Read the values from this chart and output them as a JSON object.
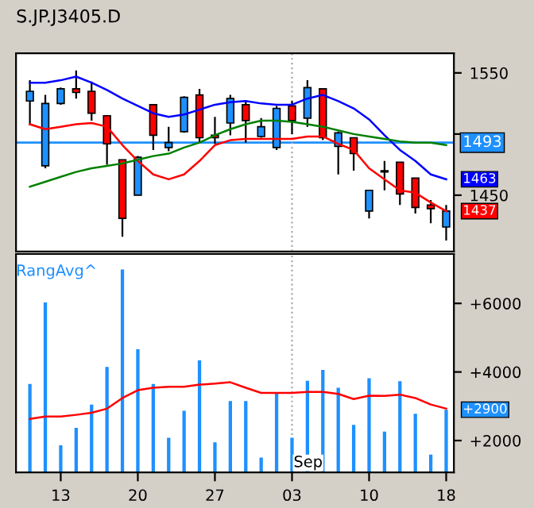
{
  "chart_data": [
    {
      "type": "candlestick",
      "title": "S.JP.J3405.D",
      "tick_labels": "y",
      "categories": [
        null,
        null,
        "13",
        null,
        null,
        null,
        null,
        "20",
        null,
        null,
        null,
        null,
        "27",
        null,
        null,
        null,
        null,
        "03",
        null,
        null,
        null,
        null,
        "10",
        null,
        null,
        null,
        null,
        "18"
      ],
      "ohlc": [
        [
          1527,
          1544,
          1507,
          1535
        ],
        [
          1474,
          1532,
          1472,
          1525
        ],
        [
          1525,
          1538,
          1524,
          1537
        ],
        [
          1537,
          1552,
          1529,
          1534
        ],
        [
          1535,
          1543,
          1511,
          1517
        ],
        [
          1515,
          1515,
          1475,
          1492
        ],
        [
          1479,
          1479,
          1416,
          1431
        ],
        [
          1450,
          1482,
          1450,
          1481
        ],
        [
          1524,
          1524,
          1487,
          1499
        ],
        [
          1489,
          1506,
          1486,
          1493
        ],
        [
          1502,
          1531,
          1501,
          1530
        ],
        [
          1532,
          1537,
          1493,
          1497
        ],
        [
          1499,
          1514,
          1492,
          1497
        ],
        [
          1509,
          1532,
          1499,
          1529
        ],
        [
          1524,
          1527,
          1493,
          1511
        ],
        [
          1498,
          1513,
          1497,
          1506
        ],
        [
          1489,
          1523,
          1487,
          1521
        ],
        [
          1523,
          1527,
          1500,
          1511
        ],
        [
          1513,
          1544,
          1506,
          1538
        ],
        [
          1537,
          1537,
          1495,
          1497
        ],
        [
          1490,
          1502,
          1467,
          1501
        ],
        [
          1497,
          1497,
          1470,
          1484
        ],
        [
          1437,
          1454,
          1431,
          1454
        ],
        [
          1469,
          1478,
          1454,
          1470
        ],
        [
          1477,
          1477,
          1442,
          1451
        ],
        [
          1464,
          1464,
          1435,
          1440
        ],
        [
          1442,
          1446,
          1427,
          1439
        ],
        [
          1424,
          1442,
          1413,
          1437
        ]
      ],
      "colors": [
        "#1e90ff",
        "#1e90ff",
        "#1e90ff",
        "#ff0000",
        "#ff0000",
        "#ff0000",
        "#ff0000",
        "#1e90ff",
        "#ff0000",
        "#1e90ff",
        "#1e90ff",
        "#ff0000",
        "#ff0000",
        "#1e90ff",
        "#ff0000",
        "#1e90ff",
        "#1e90ff",
        "#ff0000",
        "#1e90ff",
        "#ff0000",
        "#1e90ff",
        "#ff0000",
        "#1e90ff",
        "#1e90ff",
        "#ff0000",
        "#ff0000",
        "#ff0000",
        "#1e90ff"
      ],
      "series": [
        {
          "type": "line",
          "color": "#0000ff",
          "values": [
            1542,
            1542,
            1544,
            1547,
            1542,
            1536,
            1529,
            1523,
            1517,
            1514,
            1516,
            1520,
            1524,
            1526,
            1527,
            1525,
            1524,
            1524,
            1529,
            1532,
            1527,
            1521,
            1512,
            1499,
            1487,
            1478,
            1467,
            1463
          ]
        },
        {
          "type": "line",
          "color": "#ff0000",
          "values": [
            1508,
            1504,
            1506,
            1508,
            1509,
            1506,
            1491,
            1478,
            1467,
            1463,
            1467,
            1478,
            1491,
            1495,
            1496,
            1496,
            1496,
            1496,
            1498,
            1498,
            1492,
            1487,
            1472,
            1463,
            1454,
            1452,
            1444,
            1437
          ]
        },
        {
          "type": "line",
          "color": "#008000",
          "values": [
            1457,
            1461,
            1465,
            1469,
            1472,
            1474,
            1476,
            1479,
            1482,
            1484,
            1489,
            1493,
            1499,
            1504,
            1508,
            1511,
            1511,
            1510,
            1508,
            1506,
            1503,
            1500,
            1498,
            1496,
            1494,
            1493,
            1493,
            1491
          ]
        }
      ],
      "ylim": [
        1404,
        1566
      ],
      "yticks": [
        1450,
        {
          "value": 1500,
          "label": null
        },
        1550
      ],
      "ref_lines": [
        {
          "axis": "y",
          "value": 1493,
          "label": "1493",
          "color": "#1e90ff"
        },
        {
          "axis": "x",
          "value": "03",
          "color": "#aaaaaa",
          "line_style": "dotted"
        }
      ],
      "annotations": [
        {
          "text": "1463",
          "x": "18",
          "y": 1463
        },
        {
          "text": "1437",
          "x": "18",
          "y": 1437
        }
      ]
    },
    {
      "type": "bar",
      "title": "RangAvg^",
      "categories": [
        null,
        null,
        "13",
        null,
        null,
        null,
        null,
        "20",
        null,
        null,
        null,
        null,
        "27",
        null,
        null,
        null,
        null,
        "03",
        null,
        null,
        null,
        null,
        "10",
        null,
        null,
        null,
        null,
        "18"
      ],
      "series": [
        {
          "type": "bar",
          "color": "#1e90ff",
          "values": [
            3650,
            6030,
            1860,
            2370,
            3050,
            4150,
            6990,
            4660,
            3650,
            2080,
            2870,
            4340,
            1950,
            3150,
            3150,
            1500,
            3370,
            2080,
            3740,
            4060,
            3540,
            2460,
            3820,
            2260,
            3730,
            2780,
            1590,
            2900
          ]
        },
        {
          "type": "line",
          "color": "#ff0000",
          "values": [
            2630,
            2700,
            2700,
            2750,
            2810,
            2930,
            3240,
            3470,
            3540,
            3570,
            3570,
            3630,
            3660,
            3700,
            3540,
            3390,
            3390,
            3390,
            3420,
            3420,
            3360,
            3210,
            3310,
            3300,
            3340,
            3240,
            3050,
            2930
          ]
        }
      ],
      "ylim": [
        1070,
        7440
      ],
      "yticks": [
        {
          "value": 2000,
          "label": "+2000"
        },
        {
          "value": 4000,
          "label": "+4000"
        },
        {
          "value": 6000,
          "label": "+6000"
        }
      ],
      "ref_lines": [
        {
          "axis": "x",
          "value": "03",
          "label": "Sep",
          "color": "#aaaaaa",
          "line_style": "dotted"
        }
      ],
      "annotations": [
        {
          "text": "+2900",
          "x": "18",
          "y": 2900
        }
      ]
    }
  ]
}
